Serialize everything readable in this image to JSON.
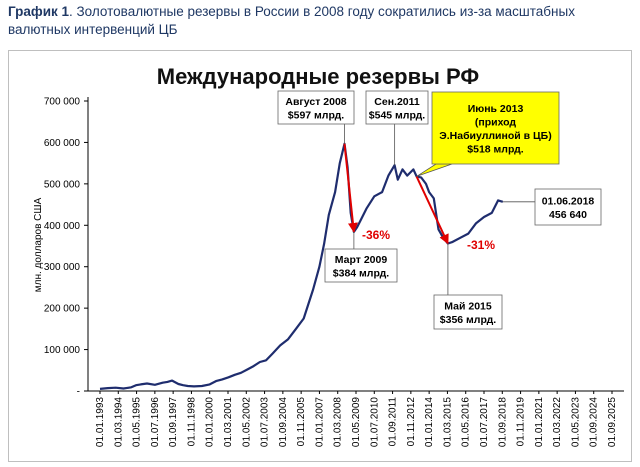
{
  "caption": {
    "bold": "График 1",
    "text": ". Золотовалютные резервы в России в 2008 году сократились из-за масштабных валютных интервенций ЦБ"
  },
  "colors": {
    "line": "#1f2d6e",
    "arrow": "#e00000",
    "highlight": "#ffff00"
  },
  "chart_data": {
    "type": "line",
    "title": "Международные резервы РФ",
    "ylabel": "млн. долларов США",
    "xlabel": "",
    "ylim": [
      0,
      700000
    ],
    "yticks": [
      "-",
      "100 000",
      "200 000",
      "300 000",
      "400 000",
      "500 000",
      "600 000",
      "700 000"
    ],
    "xticks": [
      "01.01.1993",
      "01.03.1994",
      "01.05.1995",
      "01.07.1996",
      "01.09.1997",
      "01.11.1998",
      "01.01.2000",
      "01.03.2001",
      "01.05.2002",
      "01.07.2003",
      "01.09.2004",
      "01.11.2005",
      "01.01.2007",
      "01.03.2008",
      "01.05.2009",
      "01.07.2010",
      "01.09.2011",
      "01.11.2012",
      "01.01.2014",
      "01.03.2015",
      "01.05.2016",
      "01.07.2017",
      "01.09.2018",
      "01.11.2019",
      "01.01.2021",
      "01.03.2022",
      "01.05.2023",
      "01.09.2024",
      "01.09.2025"
    ],
    "grid": false,
    "series": [
      {
        "name": "",
        "x": [
          1993.0,
          1993.5,
          1994.0,
          1994.5,
          1995.0,
          1995.3,
          1995.6,
          1996.0,
          1996.5,
          1997.0,
          1997.3,
          1997.6,
          1998.0,
          1998.3,
          1998.6,
          1999.0,
          1999.5,
          2000.0,
          2000.4,
          2000.8,
          2001.2,
          2001.6,
          2002.0,
          2002.4,
          2002.8,
          2003.2,
          2003.6,
          2004.0,
          2004.5,
          2005.0,
          2005.5,
          2006.0,
          2006.3,
          2006.6,
          2007.0,
          2007.3,
          2007.6,
          2008.0,
          2008.3,
          2008.6,
          2008.8,
          2009.0,
          2009.2,
          2009.4,
          2009.6,
          2010.0,
          2010.5,
          2011.0,
          2011.4,
          2011.8,
          2012.0,
          2012.3,
          2012.6,
          2013.0,
          2013.2,
          2013.5,
          2013.8,
          2014.0,
          2014.3,
          2014.6,
          2014.9,
          2015.2,
          2015.5,
          2016.0,
          2016.5,
          2017.0,
          2017.5,
          2018.0,
          2018.4,
          2018.7
        ],
        "y": [
          5000,
          7000,
          8000,
          6000,
          9000,
          14000,
          16000,
          18000,
          15000,
          20000,
          22000,
          25000,
          17000,
          14000,
          12000,
          11000,
          12000,
          16000,
          24000,
          28000,
          33000,
          39000,
          44000,
          52000,
          60000,
          70000,
          74000,
          90000,
          110000,
          125000,
          150000,
          175000,
          210000,
          245000,
          300000,
          355000,
          425000,
          480000,
          550000,
          597000,
          540000,
          430000,
          384000,
          395000,
          410000,
          440000,
          470000,
          480000,
          520000,
          545000,
          510000,
          535000,
          520000,
          535000,
          518000,
          515000,
          500000,
          480000,
          465000,
          390000,
          370000,
          356000,
          360000,
          370000,
          380000,
          405000,
          420000,
          430000,
          460000,
          456640
        ]
      }
    ],
    "annotations": [
      {
        "id": "aug2008",
        "lines": [
          "Август 2008",
          "$597 млрд."
        ]
      },
      {
        "id": "sep2011",
        "lines": [
          "Сен.2011",
          "$545 млрд."
        ]
      },
      {
        "id": "jun2013",
        "lines": [
          "Июнь 2013",
          "(приход",
          "Э.Набиуллиной в ЦБ)",
          "$518 млрд."
        ]
      },
      {
        "id": "jun2018",
        "lines": [
          "01.06.2018",
          "456 640"
        ]
      },
      {
        "id": "mar2009",
        "lines": [
          "Март 2009",
          "$384 млрд."
        ]
      },
      {
        "id": "may2015",
        "lines": [
          "Май 2015",
          "$356 млрд."
        ]
      }
    ],
    "drops": [
      {
        "id": "drop2008",
        "label": "-36%",
        "from": [
          2008.6,
          597000
        ],
        "to": [
          2009.2,
          384000
        ]
      },
      {
        "id": "drop2014",
        "label": "-31%",
        "from": [
          2013.2,
          518000
        ],
        "to": [
          2015.2,
          356000
        ]
      }
    ]
  }
}
